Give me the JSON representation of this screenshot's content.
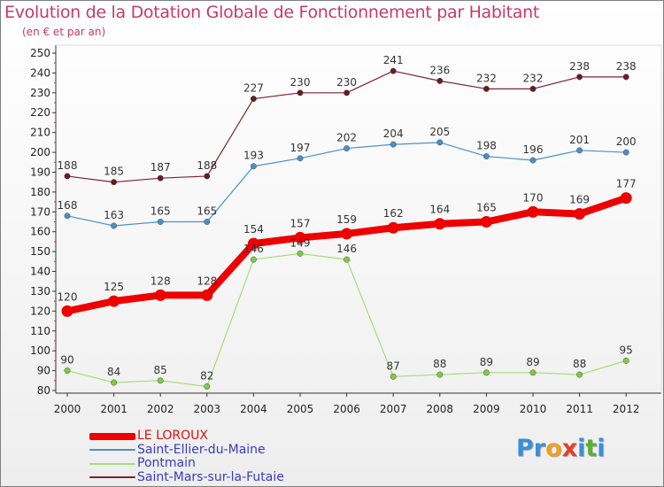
{
  "title": "Evolution de la Dotation Globale de Fonctionnement par Habitant",
  "subtitle": "(en € et par an)",
  "logo": {
    "letters": [
      "P",
      "r",
      "o",
      "x",
      "i",
      "t",
      "i"
    ],
    "colors": [
      "#3a8fd6",
      "#3a8fd6",
      "#f0a020",
      "#e0402a",
      "#3a8fd6",
      "#58b030",
      "#3a8fd6"
    ]
  },
  "chart_data": {
    "type": "line",
    "title": "Evolution de la Dotation Globale de Fonctionnement par Habitant",
    "subtitle": "(en € et par an)",
    "xlabel": "",
    "ylabel": "",
    "x": [
      "2000",
      "2001",
      "2002",
      "2003",
      "2004",
      "2005",
      "2006",
      "2007",
      "2008",
      "2009",
      "2010",
      "2011",
      "2012"
    ],
    "ylim": [
      80,
      250
    ],
    "yticks": [
      80,
      90,
      100,
      110,
      120,
      130,
      140,
      150,
      160,
      170,
      180,
      190,
      200,
      210,
      220,
      230,
      240,
      250
    ],
    "grid": false,
    "legend_position": "bottom-left",
    "series": [
      {
        "name": "Saint-Mars-sur-la-Futaie",
        "color": "#7a2430",
        "marker_color": "#6a1a22",
        "width": 1.2,
        "values": [
          188,
          185,
          187,
          188,
          227,
          230,
          230,
          241,
          236,
          232,
          232,
          238,
          238
        ]
      },
      {
        "name": "Saint-Ellier-du-Maine",
        "color": "#4a90c8",
        "marker_color": "#4a90c8",
        "width": 1.2,
        "values": [
          168,
          163,
          165,
          165,
          193,
          197,
          202,
          204,
          205,
          198,
          196,
          201,
          200
        ]
      },
      {
        "name": "Pontmain",
        "color": "#a8dc78",
        "marker_color": "#80cc40",
        "width": 1.2,
        "values": [
          90,
          84,
          85,
          82,
          146,
          149,
          146,
          87,
          88,
          89,
          89,
          88,
          95
        ]
      },
      {
        "name": "LE LOROUX",
        "color": "#ee0000",
        "marker_color": "#ee0000",
        "width": 8,
        "values": [
          120,
          125,
          128,
          128,
          154,
          157,
          159,
          162,
          164,
          165,
          170,
          169,
          177
        ]
      }
    ],
    "legend_order": [
      "LE LOROUX",
      "Saint-Ellier-du-Maine",
      "Pontmain",
      "Saint-Mars-sur-la-Futaie"
    ]
  }
}
